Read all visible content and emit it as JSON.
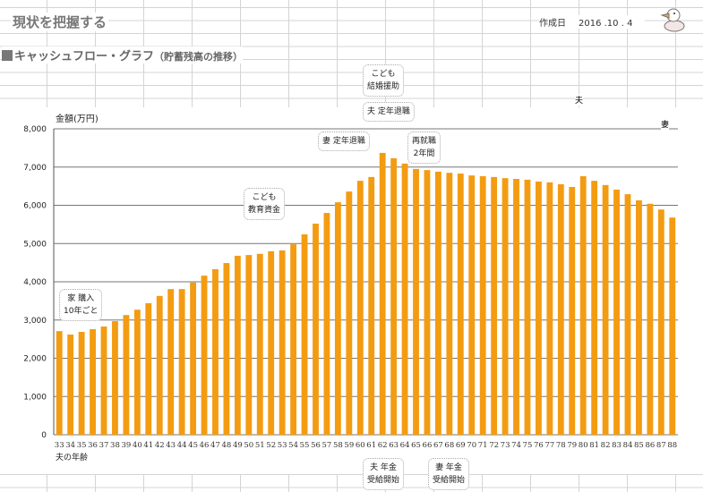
{
  "header": {
    "title": "現状を把握する",
    "date_label": "作成日",
    "date_value": "2016 .10 . 4"
  },
  "section": {
    "title": "キャッシュフロー・グラフ",
    "title_note": "（貯蓄残高の推移）"
  },
  "colors": {
    "bar": "#f39c12",
    "grid": "#777777"
  },
  "chart_data": {
    "type": "bar",
    "ylabel": "金額(万円)",
    "xlabel": "夫の年齢",
    "ylim": [
      0,
      8000
    ],
    "yticks": [
      "0",
      "1,000",
      "2,000",
      "3,000",
      "4,000",
      "5,000",
      "6,000",
      "7,000",
      "8,000"
    ],
    "grid": true,
    "categories": [
      "33",
      "34",
      "35",
      "36",
      "37",
      "38",
      "39",
      "40",
      "41",
      "42",
      "43",
      "44",
      "45",
      "46",
      "47",
      "48",
      "49",
      "50",
      "51",
      "52",
      "53",
      "54",
      "55",
      "56",
      "57",
      "58",
      "59",
      "60",
      "61",
      "62",
      "63",
      "64",
      "65",
      "66",
      "67",
      "68",
      "69",
      "70",
      "71",
      "72",
      "73",
      "74",
      "75",
      "76",
      "77",
      "78",
      "79",
      "80",
      "81",
      "82",
      "83",
      "84",
      "85",
      "86",
      "87",
      "88"
    ],
    "values": [
      2710,
      2620,
      2690,
      2760,
      2830,
      2970,
      3130,
      3270,
      3440,
      3630,
      3810,
      3810,
      3980,
      4160,
      4330,
      4490,
      4680,
      4700,
      4730,
      4800,
      4820,
      4980,
      5240,
      5520,
      5800,
      6080,
      6360,
      6640,
      6740,
      7370,
      7230,
      7090,
      6950,
      6920,
      6880,
      6850,
      6830,
      6780,
      6760,
      6740,
      6710,
      6690,
      6670,
      6620,
      6600,
      6550,
      6480,
      6760,
      6640,
      6530,
      6410,
      6290,
      6130,
      6040,
      5890,
      5680
    ],
    "annotations": [
      {
        "text": [
          "家 購入",
          "10年ごと"
        ]
      },
      {
        "text": [
          "こども",
          "教育資金"
        ]
      },
      {
        "text": [
          "妻 定年退職"
        ]
      },
      {
        "text": [
          "こども",
          "結婚援助"
        ]
      },
      {
        "text": [
          "夫 定年退職"
        ]
      },
      {
        "text": [
          "再就職",
          "2年間"
        ]
      },
      {
        "text": [
          "夫 年金",
          "受給開始"
        ]
      },
      {
        "text": [
          "妻 年金",
          "受給開始"
        ]
      },
      {
        "text": [
          "夫"
        ]
      },
      {
        "text": [
          "妻"
        ]
      }
    ]
  }
}
